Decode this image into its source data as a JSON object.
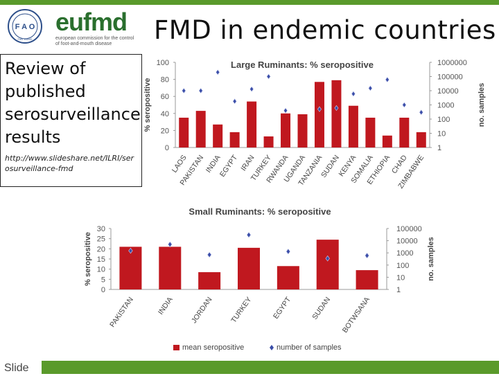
{
  "header": {
    "title": "FMD in endemic countries",
    "fao_logo": {
      "letters": "F A O",
      "tagline": "FIAT PANIS"
    },
    "eufmd_logo": {
      "word": "eufmd",
      "subtitle": "european commission for the control of foot-and-mouth disease"
    }
  },
  "review": {
    "text": "Review of published serosurveillance results",
    "link": "http://www.slideshare.net/ILRI/serosurveillance-fmd"
  },
  "footer": {
    "slide_label": "Slide"
  },
  "colors": {
    "bar": "#c0181f",
    "marker": "#3b4ea8",
    "green_bar": "#5a9a2b"
  },
  "chart_data": [
    {
      "type": "bar",
      "title": "Large Ruminants: % seropositive",
      "ylabel": "% seropositive",
      "y2label": "no. samples",
      "ylim": [
        0,
        100
      ],
      "yticks": [
        0,
        20,
        40,
        60,
        80,
        100
      ],
      "y2scale": "log",
      "y2lim": [
        1,
        1000000
      ],
      "y2ticks": [
        "1",
        "10",
        "100",
        "1000",
        "10000",
        "100000",
        "1000000"
      ],
      "categories": [
        "LAOS",
        "PAKISTAN",
        "INDIA",
        "EGYPT",
        "IRAN",
        "TURKEY",
        "RWANDA",
        "UGANDA",
        "TANZANIA",
        "SUDAN",
        "KENYA",
        "SOMALIA",
        "ETHIOPIA",
        "CHAD",
        "ZIMBABWE"
      ],
      "series": [
        {
          "name": "mean seropositive",
          "kind": "bar",
          "values": [
            35,
            43,
            27,
            18,
            54,
            13,
            40,
            39,
            77,
            79,
            49,
            35,
            14,
            35,
            18
          ]
        },
        {
          "name": "number of samples",
          "kind": "marker",
          "values": [
            10000,
            10000,
            200000,
            1800,
            13000,
            100000,
            400,
            null,
            500,
            600,
            6000,
            15000,
            60000,
            1000,
            300
          ]
        }
      ],
      "grid": false,
      "legend": "none"
    },
    {
      "type": "bar",
      "title": "Small Ruminants: % seropositive",
      "ylabel": "% seropositive",
      "y2label": "no. samples",
      "ylim": [
        0,
        30
      ],
      "yticks": [
        0,
        5,
        10,
        15,
        20,
        25,
        30
      ],
      "y2scale": "log",
      "y2lim": [
        1,
        100000
      ],
      "y2ticks": [
        "1",
        "10",
        "100",
        "1000",
        "10000",
        "100000"
      ],
      "categories": [
        "PAKISTAN",
        "INDIA",
        "JORDAN",
        "TURKEY",
        "EGYPT",
        "SUDAN",
        "BOTWSANA"
      ],
      "series": [
        {
          "name": "mean seropositive",
          "kind": "bar",
          "values": [
            21,
            21,
            8.5,
            20.5,
            11.5,
            24.5,
            9.5
          ]
        },
        {
          "name": "number of samples",
          "kind": "marker",
          "values": [
            1500,
            5000,
            700,
            30000,
            1300,
            350,
            600
          ]
        }
      ],
      "grid": false,
      "legend": "bottom"
    }
  ]
}
